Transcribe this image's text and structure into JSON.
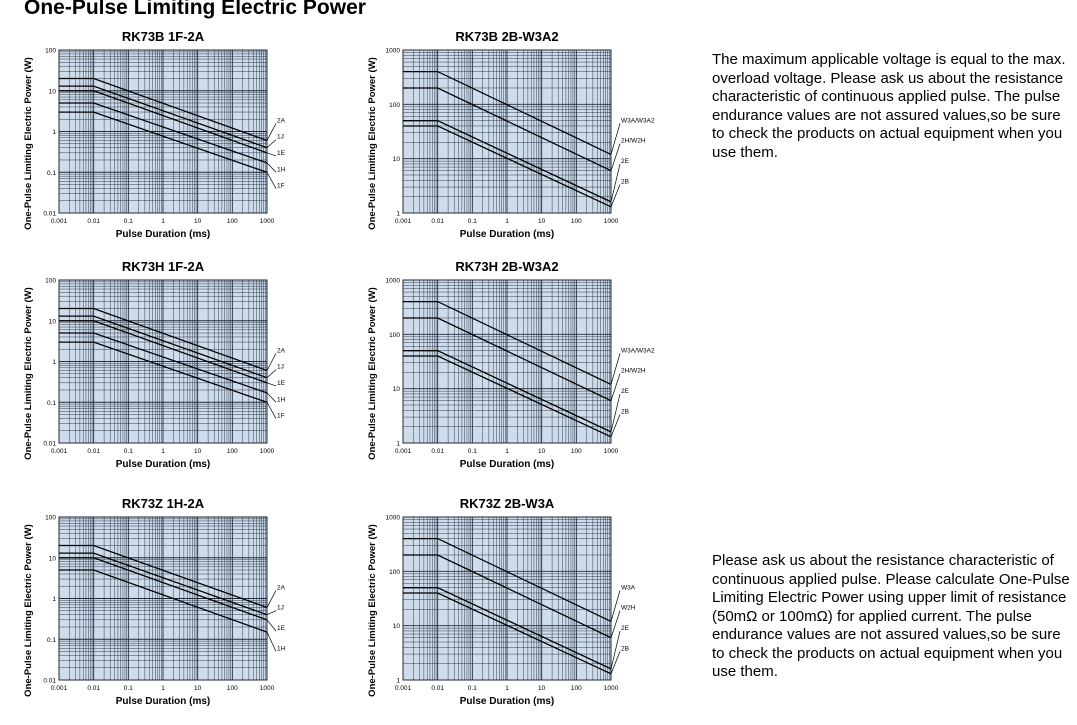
{
  "page_title": "One-Pulse Limiting Electric Power",
  "notes": [
    "The maximum applicable voltage is equal to the max. overload voltage. Please ask us about the resistance characteristic of continuous applied pulse. The pulse endurance values are not assured values,so be sure to check the products on actual equipment when you use them.",
    "Please ask us about the resistance characteristic of continuous applied pulse. Please calculate One-Pulse Limiting Electric Power using upper limit of resistance (50mΩ or 100mΩ) for applied current. The pulse endurance values are not assured values,so be sure to check the products on actual equipment when you use them."
  ],
  "colors": {
    "plot_bg": "#cfdcec",
    "grid": "#1e2a3a",
    "line": "#000000",
    "text": "#000000"
  },
  "chart_data": [
    {
      "type": "line",
      "title": "RK73B 1F-2A",
      "xlabel": "Pulse Duration (ms)",
      "ylabel": "One-Pulse Limiting Electric Power (W)",
      "x_scale": "log",
      "y_scale": "log",
      "xlim": [
        0.001,
        1000
      ],
      "ylim": [
        0.01,
        100
      ],
      "x_ticks": [
        "0.001",
        "0.01",
        "0.1",
        "1",
        "10",
        "100",
        "1000"
      ],
      "y_ticks": [
        "0.01",
        "0.1",
        "1",
        "10",
        "100"
      ],
      "grid": true,
      "series": [
        {
          "name": "2A",
          "x": [
            0.001,
            0.01,
            1000
          ],
          "y": [
            20,
            20,
            0.6
          ]
        },
        {
          "name": "1J",
          "x": [
            0.001,
            0.01,
            1000
          ],
          "y": [
            13,
            13,
            0.4
          ]
        },
        {
          "name": "1E",
          "x": [
            0.001,
            0.01,
            1000
          ],
          "y": [
            10,
            10,
            0.3
          ]
        },
        {
          "name": "1H",
          "x": [
            0.001,
            0.01,
            1000
          ],
          "y": [
            5,
            5,
            0.17
          ]
        },
        {
          "name": "1F",
          "x": [
            0.001,
            0.01,
            1000
          ],
          "y": [
            3,
            3,
            0.1
          ]
        }
      ]
    },
    {
      "type": "line",
      "title": "RK73B 2B-W3A2",
      "xlabel": "Pulse Duration (ms)",
      "ylabel": "One-Pulse Limiting Electric Power (W)",
      "x_scale": "log",
      "y_scale": "log",
      "xlim": [
        0.001,
        1000
      ],
      "ylim": [
        1,
        1000
      ],
      "x_ticks": [
        "0.001",
        "0.01",
        "0.1",
        "1",
        "10",
        "100",
        "1000"
      ],
      "y_ticks": [
        "1",
        "10",
        "100",
        "1000"
      ],
      "grid": true,
      "series": [
        {
          "name": "W3A/W3A2",
          "x": [
            0.001,
            0.01,
            1000
          ],
          "y": [
            400,
            400,
            12
          ]
        },
        {
          "name": "2H/W2H",
          "x": [
            0.001,
            0.01,
            1000
          ],
          "y": [
            200,
            200,
            6
          ]
        },
        {
          "name": "2E",
          "x": [
            0.001,
            0.01,
            1000
          ],
          "y": [
            50,
            50,
            1.6
          ]
        },
        {
          "name": "2B",
          "x": [
            0.001,
            0.01,
            1000
          ],
          "y": [
            40,
            40,
            1.3
          ]
        }
      ]
    },
    {
      "type": "line",
      "title": "RK73H 1F-2A",
      "xlabel": "Pulse Duration (ms)",
      "ylabel": "One-Pulse Limiting Electric Power (W)",
      "x_scale": "log",
      "y_scale": "log",
      "xlim": [
        0.001,
        1000
      ],
      "ylim": [
        0.01,
        100
      ],
      "x_ticks": [
        "0.001",
        "0.01",
        "0.1",
        "1",
        "10",
        "100",
        "1000"
      ],
      "y_ticks": [
        "0.01",
        "0.1",
        "1",
        "10",
        "100"
      ],
      "grid": true,
      "series": [
        {
          "name": "2A",
          "x": [
            0.001,
            0.01,
            1000
          ],
          "y": [
            20,
            20,
            0.6
          ]
        },
        {
          "name": "1J",
          "x": [
            0.001,
            0.01,
            1000
          ],
          "y": [
            13,
            13,
            0.4
          ]
        },
        {
          "name": "1E",
          "x": [
            0.001,
            0.01,
            1000
          ],
          "y": [
            10,
            10,
            0.3
          ]
        },
        {
          "name": "1H",
          "x": [
            0.001,
            0.01,
            1000
          ],
          "y": [
            5,
            5,
            0.17
          ]
        },
        {
          "name": "1F",
          "x": [
            0.001,
            0.01,
            1000
          ],
          "y": [
            3,
            3,
            0.1
          ]
        }
      ]
    },
    {
      "type": "line",
      "title": "RK73H 2B-W3A2",
      "xlabel": "Pulse Duration (ms)",
      "ylabel": "One-Pulse Limiting Electric Power (W)",
      "x_scale": "log",
      "y_scale": "log",
      "xlim": [
        0.001,
        1000
      ],
      "ylim": [
        1,
        1000
      ],
      "x_ticks": [
        "0.001",
        "0.01",
        "0.1",
        "1",
        "10",
        "100",
        "1000"
      ],
      "y_ticks": [
        "1",
        "10",
        "100",
        "1000"
      ],
      "grid": true,
      "series": [
        {
          "name": "W3A/W3A2",
          "x": [
            0.001,
            0.01,
            1000
          ],
          "y": [
            400,
            400,
            12
          ]
        },
        {
          "name": "2H/W2H",
          "x": [
            0.001,
            0.01,
            1000
          ],
          "y": [
            200,
            200,
            6
          ]
        },
        {
          "name": "2E",
          "x": [
            0.001,
            0.01,
            1000
          ],
          "y": [
            50,
            50,
            1.6
          ]
        },
        {
          "name": "2B",
          "x": [
            0.001,
            0.01,
            1000
          ],
          "y": [
            40,
            40,
            1.3
          ]
        }
      ]
    },
    {
      "type": "line",
      "title": "RK73Z 1H-2A",
      "xlabel": "Pulse Duration (ms)",
      "ylabel": "One-Pulse Limiting Electric Power (W)",
      "x_scale": "log",
      "y_scale": "log",
      "xlim": [
        0.001,
        1000
      ],
      "ylim": [
        0.01,
        100
      ],
      "x_ticks": [
        "0.001",
        "0.01",
        "0.1",
        "1",
        "10",
        "100",
        "1000"
      ],
      "y_ticks": [
        "0.01",
        "0.1",
        "1",
        "10",
        "100"
      ],
      "grid": true,
      "series": [
        {
          "name": "2A",
          "x": [
            0.001,
            0.01,
            1000
          ],
          "y": [
            20,
            20,
            0.6
          ]
        },
        {
          "name": "1J",
          "x": [
            0.001,
            0.01,
            1000
          ],
          "y": [
            13,
            13,
            0.4
          ]
        },
        {
          "name": "1E",
          "x": [
            0.001,
            0.01,
            1000
          ],
          "y": [
            10,
            10,
            0.3
          ]
        },
        {
          "name": "1H",
          "x": [
            0.001,
            0.01,
            1000
          ],
          "y": [
            5,
            5,
            0.15
          ]
        }
      ]
    },
    {
      "type": "line",
      "title": "RK73Z 2B-W3A",
      "xlabel": "Pulse Duration (ms)",
      "ylabel": "One-Pulse Limiting Electric Power (W)",
      "x_scale": "log",
      "y_scale": "log",
      "xlim": [
        0.001,
        1000
      ],
      "ylim": [
        1,
        1000
      ],
      "x_ticks": [
        "0.001",
        "0.01",
        "0.1",
        "1",
        "10",
        "100",
        "1000"
      ],
      "y_ticks": [
        "1",
        "10",
        "100",
        "1000"
      ],
      "grid": true,
      "series": [
        {
          "name": "W3A",
          "x": [
            0.001,
            0.01,
            1000
          ],
          "y": [
            400,
            400,
            12
          ]
        },
        {
          "name": "W2H",
          "x": [
            0.001,
            0.01,
            1000
          ],
          "y": [
            200,
            200,
            6
          ]
        },
        {
          "name": "2E",
          "x": [
            0.001,
            0.01,
            1000
          ],
          "y": [
            50,
            50,
            1.6
          ]
        },
        {
          "name": "2B",
          "x": [
            0.001,
            0.01,
            1000
          ],
          "y": [
            40,
            40,
            1.3
          ]
        }
      ]
    }
  ]
}
